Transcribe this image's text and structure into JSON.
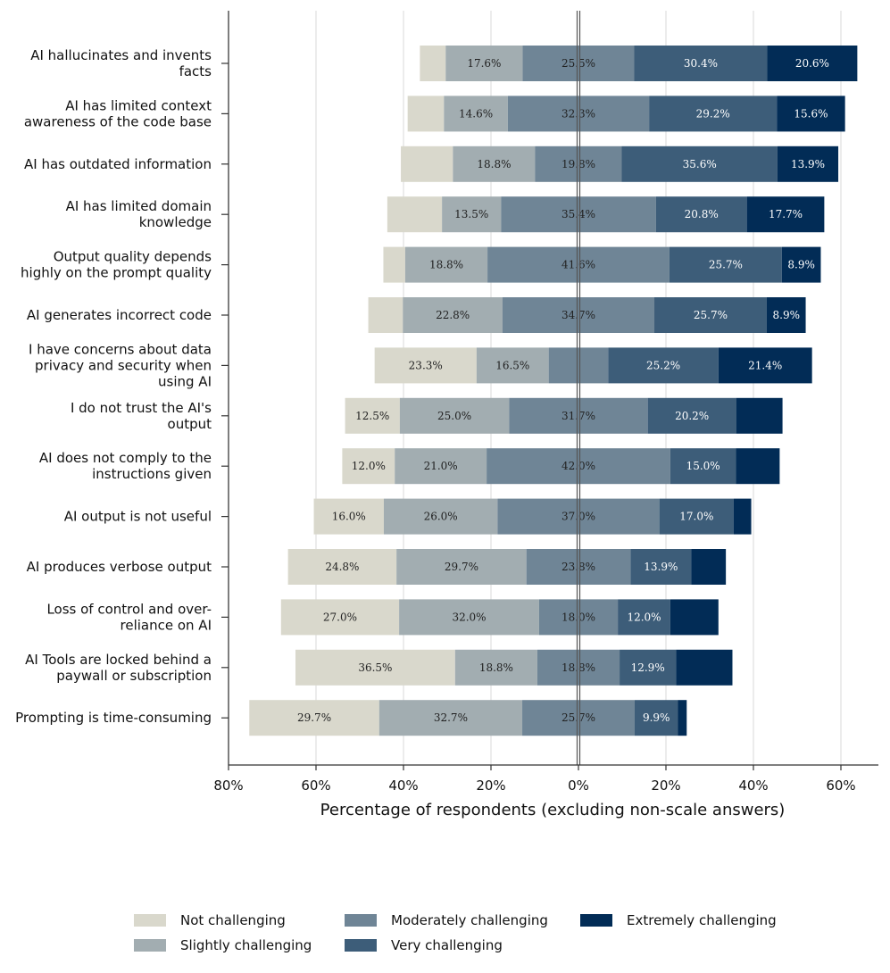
{
  "chart_data": {
    "type": "bar",
    "orientation": "horizontal-diverging-stacked",
    "xlabel": "Percentage of respondents (excluding non-scale answers)",
    "xlim": [
      -80,
      70
    ],
    "xticks": [
      -80,
      -60,
      -40,
      -20,
      0,
      20,
      40,
      60
    ],
    "xtick_labels": [
      "80%",
      "60%",
      "40%",
      "20%",
      "0%",
      "20%",
      "40%",
      "60%"
    ],
    "series_names": [
      "Not challenging",
      "Slightly challenging",
      "Moderately challenging",
      "Very challenging",
      "Extremely challenging"
    ],
    "colors": [
      "#d9d8cc",
      "#a2adb1",
      "#6f8596",
      "#3d5d79",
      "#022c56"
    ],
    "label_colors": [
      "#222222",
      "#222222",
      "#222222",
      "#ffffff",
      "#ffffff"
    ],
    "categories": [
      {
        "label": [
          "AI hallucinates and invents",
          "facts"
        ],
        "values": [
          5.9,
          17.6,
          25.5,
          30.4,
          20.6
        ],
        "show": [
          false,
          true,
          true,
          true,
          true
        ]
      },
      {
        "label": [
          "AI has limited context",
          "awareness of the code base"
        ],
        "values": [
          8.3,
          14.6,
          32.3,
          29.2,
          15.6
        ],
        "show": [
          false,
          true,
          true,
          true,
          true
        ]
      },
      {
        "label": [
          "AI has outdated information"
        ],
        "values": [
          11.9,
          18.8,
          19.8,
          35.6,
          13.9
        ],
        "show": [
          false,
          true,
          true,
          true,
          true
        ]
      },
      {
        "label": [
          "AI has limited domain",
          "knowledge"
        ],
        "values": [
          12.5,
          13.5,
          35.4,
          20.8,
          17.7
        ],
        "show": [
          false,
          true,
          true,
          true,
          true
        ]
      },
      {
        "label": [
          "Output quality depends",
          "highly on the prompt quality"
        ],
        "values": [
          5.0,
          18.8,
          41.6,
          25.7,
          8.9
        ],
        "show": [
          false,
          true,
          true,
          true,
          true
        ]
      },
      {
        "label": [
          "AI generates incorrect code"
        ],
        "values": [
          7.9,
          22.8,
          34.7,
          25.7,
          8.9
        ],
        "show": [
          false,
          true,
          true,
          true,
          true
        ]
      },
      {
        "label": [
          "I have concerns about data",
          "privacy and security when",
          "using AI"
        ],
        "values": [
          23.3,
          16.5,
          13.6,
          25.2,
          21.4
        ],
        "show": [
          true,
          true,
          false,
          true,
          true
        ]
      },
      {
        "label": [
          "I do not trust the AI's",
          "output"
        ],
        "values": [
          12.5,
          25.0,
          31.7,
          20.2,
          10.6
        ],
        "show": [
          true,
          true,
          true,
          true,
          false
        ]
      },
      {
        "label": [
          "AI does not comply to the",
          "instructions given"
        ],
        "values": [
          12.0,
          21.0,
          42.0,
          15.0,
          10.0
        ],
        "show": [
          true,
          true,
          true,
          true,
          false
        ]
      },
      {
        "label": [
          "AI output is not useful"
        ],
        "values": [
          16.0,
          26.0,
          37.0,
          17.0,
          4.0
        ],
        "show": [
          true,
          true,
          true,
          true,
          false
        ]
      },
      {
        "label": [
          "AI produces verbose output"
        ],
        "values": [
          24.8,
          29.7,
          23.8,
          13.9,
          7.9
        ],
        "show": [
          true,
          true,
          true,
          true,
          false
        ]
      },
      {
        "label": [
          "Loss of control and over-",
          "reliance on AI"
        ],
        "values": [
          27.0,
          32.0,
          18.0,
          12.0,
          11.0
        ],
        "show": [
          true,
          true,
          true,
          true,
          false
        ]
      },
      {
        "label": [
          "AI Tools are locked behind a",
          "paywall or subscription"
        ],
        "values": [
          36.5,
          18.8,
          18.8,
          12.9,
          12.9
        ],
        "show": [
          true,
          true,
          true,
          true,
          false
        ]
      },
      {
        "label": [
          "Prompting is time-consuming"
        ],
        "values": [
          29.7,
          32.7,
          25.7,
          9.9,
          2.0
        ],
        "show": [
          true,
          true,
          true,
          true,
          false
        ]
      }
    ]
  },
  "legend": {
    "items": [
      {
        "label": "Not challenging",
        "color": "#d9d8cc"
      },
      {
        "label": "Slightly challenging",
        "color": "#a2adb1"
      },
      {
        "label": "Moderately challenging",
        "color": "#6f8596"
      },
      {
        "label": "Very challenging",
        "color": "#3d5d79"
      },
      {
        "label": "Extremely challenging",
        "color": "#022c56"
      }
    ]
  }
}
